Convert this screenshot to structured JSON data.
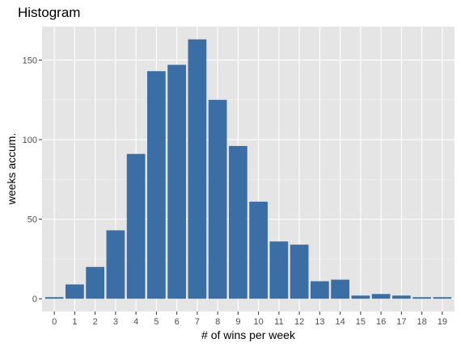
{
  "chart_data": {
    "type": "bar",
    "title": "Histogram",
    "xlabel": "# of wins per week",
    "ylabel": "weeks accum.",
    "categories": [
      "0",
      "1",
      "2",
      "3",
      "4",
      "5",
      "6",
      "7",
      "8",
      "9",
      "10",
      "11",
      "12",
      "13",
      "14",
      "15",
      "16",
      "17",
      "18",
      "19"
    ],
    "values": [
      1,
      9,
      20,
      43,
      91,
      143,
      147,
      163,
      125,
      96,
      61,
      36,
      34,
      11,
      12,
      2,
      3,
      2,
      1,
      1
    ],
    "yticks": [
      "0",
      "50",
      "100",
      "150"
    ],
    "ylim": [
      -8,
      171
    ],
    "grid": true,
    "legend": "none",
    "colors": {
      "bar": "#3a6ea5",
      "panel_background": "#e5e5e5",
      "grid": "#ffffff"
    }
  }
}
